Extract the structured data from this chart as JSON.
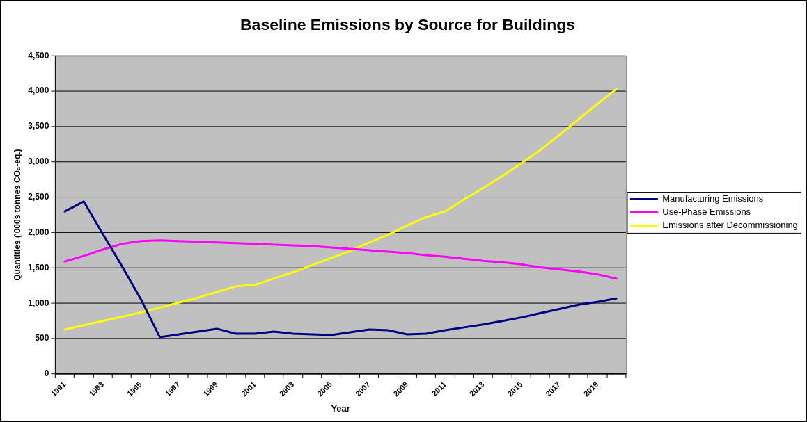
{
  "chart_data": {
    "type": "line",
    "title": "Baseline Emissions by Source for Buildings",
    "xlabel": "Year",
    "ylabel": "Quantities ('000s tonnes CO₂-eq.)",
    "categories": [
      "1991",
      null,
      "1993",
      null,
      "1995",
      null,
      "1997",
      null,
      "1999",
      null,
      "2001",
      null,
      "2003",
      null,
      "2005",
      null,
      "2007",
      null,
      "2009",
      null,
      "2011",
      null,
      "2013",
      null,
      "2015",
      null,
      "2017",
      null,
      "2019",
      null
    ],
    "series": [
      {
        "name": "Manufacturing Emissions",
        "color": "#000080",
        "values": [
          2300,
          2440,
          1980,
          1530,
          1060,
          520,
          560,
          600,
          640,
          570,
          570,
          600,
          570,
          560,
          550,
          590,
          630,
          620,
          560,
          570,
          620,
          660,
          700,
          750,
          800,
          860,
          920,
          980,
          1020,
          1070
        ]
      },
      {
        "name": "Use-Phase Emissions",
        "color": "#ff00ff",
        "values": [
          1590,
          1670,
          1760,
          1840,
          1880,
          1890,
          1880,
          1870,
          1860,
          1850,
          1840,
          1830,
          1820,
          1810,
          1790,
          1770,
          1750,
          1730,
          1710,
          1680,
          1660,
          1630,
          1600,
          1580,
          1550,
          1510,
          1480,
          1450,
          1410,
          1350
        ]
      },
      {
        "name": "Emissions after Decommissioning",
        "color": "#ffff00",
        "values": [
          630,
          690,
          750,
          810,
          870,
          940,
          1010,
          1080,
          1160,
          1240,
          1260,
          1350,
          1440,
          1540,
          1640,
          1740,
          1860,
          1970,
          2100,
          2220,
          2300,
          2470,
          2630,
          2800,
          2980,
          3170,
          3380,
          3600,
          3820,
          4030
        ]
      }
    ],
    "ylim": [
      0,
      4500
    ],
    "yticks": [
      {
        "value": 0,
        "label": "0"
      },
      {
        "value": 500,
        "label": "500"
      },
      {
        "value": 1000,
        "label": "1,000"
      },
      {
        "value": 1500,
        "label": "1,500"
      },
      {
        "value": 2000,
        "label": "2,000"
      },
      {
        "value": 2500,
        "label": "2,500"
      },
      {
        "value": 3000,
        "label": "3,000"
      },
      {
        "value": 3500,
        "label": "3,500"
      },
      {
        "value": 4000,
        "label": "4,000"
      },
      {
        "value": 4500,
        "label": "4,500"
      }
    ],
    "grid": "y",
    "legend": "right",
    "marker": "none",
    "line_style": "solid"
  }
}
